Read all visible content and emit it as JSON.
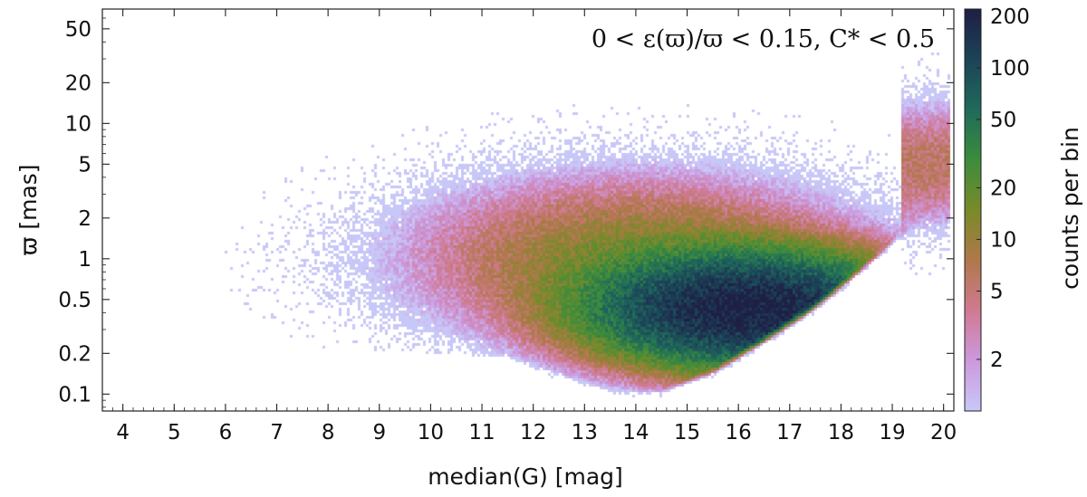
{
  "chart_data": {
    "type": "heatmap",
    "title": "",
    "annotation": "0 < ε(ϖ)/ϖ < 0.15,  C* < 0.5",
    "xlabel": "median(G)  [mag]",
    "ylabel": "ϖ  [mas]",
    "colorbar_label": "counts per bin",
    "xlim": [
      3.6,
      20.2
    ],
    "ylim": [
      0.075,
      70
    ],
    "y_scale": "log",
    "color_scale": "log",
    "color_range": [
      1,
      220
    ],
    "x_ticks": [
      4,
      5,
      6,
      7,
      8,
      9,
      10,
      11,
      12,
      13,
      14,
      15,
      16,
      17,
      18,
      19,
      20
    ],
    "x_tick_labels": [
      "4",
      "5",
      "6",
      "7",
      "8",
      "9",
      "10",
      "11",
      "12",
      "13",
      "14",
      "15",
      "16",
      "17",
      "18",
      "19",
      "20"
    ],
    "y_ticks": [
      0.1,
      0.2,
      0.5,
      1,
      2,
      5,
      10,
      20,
      50
    ],
    "y_tick_labels": [
      "0.1",
      "0.2",
      "0.5",
      "1",
      "2",
      "5",
      "10",
      "20",
      "50"
    ],
    "colorbar_ticks": [
      2,
      5,
      10,
      20,
      50,
      100,
      200
    ],
    "colorbar_tick_labels": [
      "2",
      "5",
      "10",
      "20",
      "50",
      "100",
      "200"
    ],
    "density_model": {
      "peak_counts": 220,
      "peak_G": 16.2,
      "peak_parallax_mas": 0.42,
      "lower_edge_G": [
        11.5,
        13.5,
        14.5,
        15.5,
        16.5,
        17.5,
        18.5,
        19.5,
        20
      ],
      "lower_edge_parallax_mas": [
        0.2,
        0.11,
        0.11,
        0.16,
        0.28,
        0.5,
        1.0,
        2.0,
        3.0
      ]
    },
    "colormap": [
      "#c8c8f8",
      "#cc99dd",
      "#d07a92",
      "#b0784a",
      "#7a8a2a",
      "#3d8c3c",
      "#1f6b5a",
      "#1c4458",
      "#1e1f45"
    ],
    "grid": false,
    "legend": "colorbar-right"
  }
}
